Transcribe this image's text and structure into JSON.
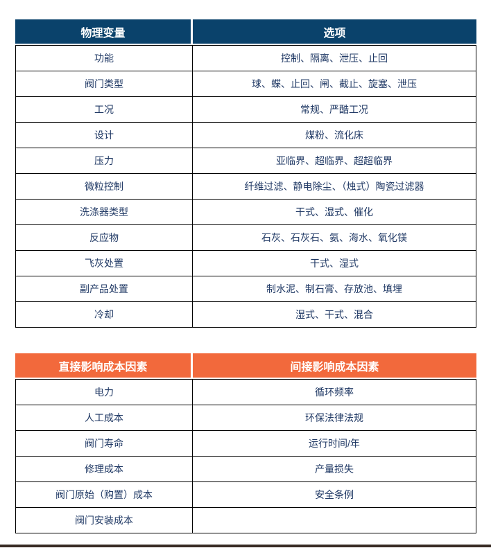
{
  "table1": {
    "headers": [
      "物理变量",
      "选项"
    ],
    "rows": [
      [
        "功能",
        "控制、隔离、泄压、止回"
      ],
      [
        "阀门类型",
        "球、蝶、止回、闸、截止、旋塞、泄压"
      ],
      [
        "工况",
        "常规、严酷工况"
      ],
      [
        "设计",
        "煤粉、流化床"
      ],
      [
        "压力",
        "亚临界、超临界、超超临界"
      ],
      [
        "微粒控制",
        "纤维过滤、静电除尘、（烛式）陶瓷过滤器"
      ],
      [
        "洗涤器类型",
        "干式、湿式、催化"
      ],
      [
        "反应物",
        "石灰、石灰石、氨、海水、氧化镁"
      ],
      [
        "飞灰处置",
        "干式、湿式"
      ],
      [
        "副产品处置",
        "制水泥、制石膏、存放池、填埋"
      ],
      [
        "冷却",
        "湿式、干式、混合"
      ]
    ]
  },
  "table2": {
    "headers": [
      "直接影响成本因素",
      "间接影响成本因素"
    ],
    "rows": [
      [
        "电力",
        "循环频率"
      ],
      [
        "人工成本",
        "环保法律法规"
      ],
      [
        "阀门寿命",
        "运行时间/年"
      ],
      [
        "修理成本",
        "产量损失"
      ],
      [
        "阀门原始（购置）成本",
        "安全条例"
      ],
      [
        "阀门安装成本",
        ""
      ]
    ]
  },
  "colors": {
    "table1_header_bg": "#0A426B",
    "table2_header_bg": "#F2693C",
    "body_text_color": "#1F3864",
    "bottom_bar_color": "#382B24"
  }
}
